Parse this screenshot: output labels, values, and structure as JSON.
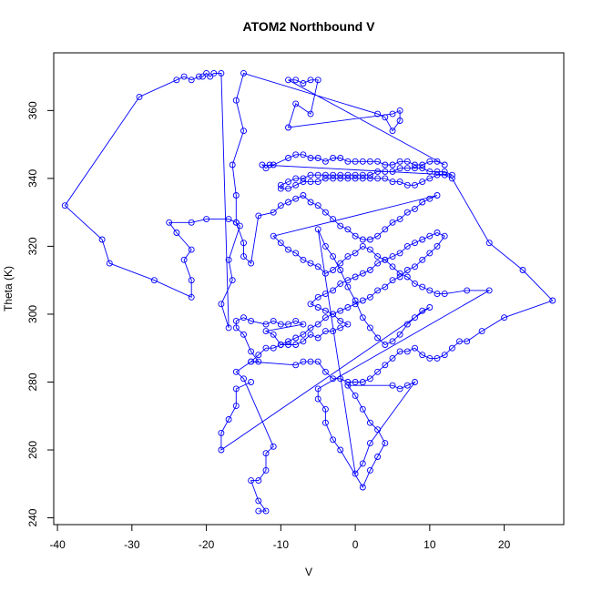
{
  "chart_data": {
    "type": "scatter",
    "title": "ATOM2 Northbound V",
    "xlabel": "V",
    "ylabel": "Theta (K)",
    "xlim": [
      -40.5,
      28
    ],
    "ylim": [
      238,
      377
    ],
    "x_ticks": [
      -40,
      -30,
      -20,
      -10,
      0,
      10,
      20
    ],
    "y_ticks": [
      240,
      260,
      280,
      300,
      320,
      340,
      360
    ],
    "series_color": "#0000ff",
    "marker": "open-circle",
    "connected": true,
    "grid": false,
    "series": [
      {
        "points": [
          [
            -13,
            242
          ],
          [
            -12,
            242
          ],
          [
            -13,
            245
          ],
          [
            -14,
            251
          ],
          [
            -13,
            251
          ],
          [
            -12,
            254
          ],
          [
            -12,
            259
          ],
          [
            -11,
            261
          ],
          [
            -15,
            281
          ],
          [
            -16,
            283
          ],
          [
            -14,
            286
          ],
          [
            -13,
            286
          ],
          [
            -14,
            289
          ],
          [
            -15,
            294
          ],
          [
            -16,
            296
          ],
          [
            -16,
            298
          ],
          [
            -15,
            299
          ],
          [
            -14,
            298
          ],
          [
            -12,
            297
          ],
          [
            -11,
            298
          ],
          [
            -10,
            297
          ],
          [
            -9,
            297
          ],
          [
            -8,
            298
          ],
          [
            -7,
            297
          ],
          [
            -12,
            295
          ],
          [
            -11,
            294
          ],
          [
            -10,
            291
          ],
          [
            -9,
            291
          ],
          [
            -8,
            291
          ],
          [
            -7,
            292
          ],
          [
            -6,
            294
          ],
          [
            -5,
            293
          ],
          [
            -4,
            295
          ],
          [
            -3,
            295
          ],
          [
            -2,
            296
          ],
          [
            -1,
            297
          ],
          [
            -2,
            298
          ],
          [
            -3,
            300
          ],
          [
            -4,
            301
          ],
          [
            -5,
            302
          ],
          [
            -6,
            303
          ],
          [
            -5,
            305
          ],
          [
            -4,
            306
          ],
          [
            -3,
            307
          ],
          [
            -2,
            309
          ],
          [
            -1,
            310
          ],
          [
            0,
            311
          ],
          [
            1,
            312
          ],
          [
            2,
            313
          ],
          [
            3,
            315
          ],
          [
            4,
            316
          ],
          [
            5,
            317
          ],
          [
            6,
            318
          ],
          [
            7,
            320
          ],
          [
            8,
            321
          ],
          [
            9,
            322
          ],
          [
            10,
            323
          ],
          [
            11,
            324
          ],
          [
            12,
            323
          ],
          [
            11,
            320
          ],
          [
            10,
            318
          ],
          [
            9,
            316
          ],
          [
            8,
            314
          ],
          [
            7,
            313
          ],
          [
            6,
            311
          ],
          [
            5,
            310
          ],
          [
            4,
            308
          ],
          [
            3,
            307
          ],
          [
            2,
            305
          ],
          [
            1,
            304
          ],
          [
            0,
            303
          ],
          [
            -1,
            302
          ],
          [
            -2,
            301
          ],
          [
            -3,
            300
          ],
          [
            -4,
            299
          ],
          [
            -5,
            297
          ],
          [
            -6,
            296
          ],
          [
            -7,
            294
          ],
          [
            -8,
            293
          ],
          [
            -9,
            292
          ],
          [
            -10,
            291
          ],
          [
            -11,
            290
          ],
          [
            -12,
            290
          ],
          [
            -13,
            288
          ],
          [
            -14,
            286
          ],
          [
            -8,
            285
          ],
          [
            -7,
            286
          ],
          [
            -6,
            286
          ],
          [
            -5,
            286
          ],
          [
            -4,
            283
          ],
          [
            -3,
            281
          ],
          [
            -2,
            281
          ],
          [
            -1,
            280
          ],
          [
            0,
            280
          ],
          [
            1,
            280
          ],
          [
            2,
            281
          ],
          [
            3,
            283
          ],
          [
            4,
            285
          ],
          [
            5,
            287
          ],
          [
            6,
            289
          ],
          [
            7,
            289
          ],
          [
            8,
            290
          ],
          [
            9,
            288
          ],
          [
            10,
            287
          ],
          [
            11,
            287
          ],
          [
            12,
            288
          ],
          [
            13,
            290
          ],
          [
            14,
            292
          ],
          [
            15,
            292
          ],
          [
            17,
            295
          ],
          [
            20,
            299
          ],
          [
            26.5,
            304
          ],
          [
            22.5,
            313
          ],
          [
            18,
            321
          ],
          [
            13,
            340
          ],
          [
            12,
            341
          ],
          [
            11,
            341
          ],
          [
            10,
            340
          ],
          [
            9,
            339
          ],
          [
            8,
            338
          ],
          [
            7,
            338
          ],
          [
            6,
            339
          ],
          [
            5,
            339
          ],
          [
            4,
            340
          ],
          [
            3,
            340
          ],
          [
            2,
            340
          ],
          [
            1,
            340
          ],
          [
            0,
            340
          ],
          [
            -1,
            340
          ],
          [
            -2,
            340
          ],
          [
            -3,
            340
          ],
          [
            -4,
            340
          ],
          [
            -5,
            339
          ],
          [
            -6,
            339
          ],
          [
            -7,
            339
          ],
          [
            -8,
            338
          ],
          [
            -9,
            337
          ],
          [
            -10,
            337
          ],
          [
            -10,
            338
          ],
          [
            -9,
            339
          ],
          [
            -8,
            340
          ],
          [
            -7,
            340
          ],
          [
            -6,
            341
          ],
          [
            -5,
            341
          ],
          [
            -4,
            341
          ],
          [
            -3,
            341
          ],
          [
            -2,
            341
          ],
          [
            -1,
            341
          ],
          [
            0,
            341
          ],
          [
            1,
            341
          ],
          [
            2,
            341
          ],
          [
            3,
            342
          ],
          [
            4,
            342
          ],
          [
            5,
            342
          ],
          [
            6,
            343
          ],
          [
            7,
            343
          ],
          [
            8,
            343
          ],
          [
            9,
            343
          ],
          [
            10,
            342
          ],
          [
            11,
            342
          ],
          [
            12,
            342
          ],
          [
            13,
            341
          ],
          [
            -12.5,
            344
          ],
          [
            -12,
            343
          ],
          [
            -11.5,
            344
          ],
          [
            -11,
            344
          ],
          [
            -9,
            346
          ],
          [
            -8,
            347
          ],
          [
            -7,
            347
          ],
          [
            -6,
            346
          ],
          [
            -5,
            346
          ],
          [
            -4,
            345
          ],
          [
            -3,
            346
          ],
          [
            -2,
            346
          ],
          [
            -1,
            345
          ],
          [
            0,
            345
          ],
          [
            1,
            345
          ],
          [
            2,
            345
          ],
          [
            3,
            345
          ],
          [
            4,
            344
          ],
          [
            5,
            344
          ],
          [
            6,
            345
          ],
          [
            7,
            345
          ],
          [
            8,
            344
          ],
          [
            9,
            344
          ],
          [
            10,
            345
          ],
          [
            11,
            345
          ],
          [
            12,
            344
          ],
          [
            -9,
            369
          ],
          [
            -8,
            369
          ],
          [
            -7,
            368
          ],
          [
            -6,
            369
          ],
          [
            -5,
            369
          ],
          [
            -6,
            359
          ],
          [
            -8,
            362
          ],
          [
            -9,
            355
          ],
          [
            5,
            359
          ],
          [
            6,
            360
          ],
          [
            6,
            357
          ],
          [
            5,
            354
          ],
          [
            4,
            358
          ],
          [
            3,
            359
          ],
          [
            -15,
            371
          ],
          [
            -16,
            363
          ],
          [
            -15,
            354
          ],
          [
            -16.5,
            344
          ],
          [
            -16,
            335
          ],
          [
            -16,
            327
          ],
          [
            -15.5,
            326
          ],
          [
            -17,
            316
          ],
          [
            -16.5,
            310
          ],
          [
            -18,
            303
          ],
          [
            -17,
            296
          ],
          [
            -18,
            371
          ],
          [
            -19,
            371
          ],
          [
            -19.5,
            370
          ],
          [
            -20,
            371
          ],
          [
            -20.5,
            370
          ],
          [
            -21,
            370
          ],
          [
            -22,
            369
          ],
          [
            -23,
            370
          ],
          [
            -24,
            369
          ],
          [
            -29,
            364
          ],
          [
            -39,
            332
          ],
          [
            -34,
            322
          ],
          [
            -33,
            315
          ],
          [
            -27,
            310
          ],
          [
            -22,
            305
          ],
          [
            -22,
            310
          ],
          [
            -23,
            316
          ],
          [
            -22,
            319
          ],
          [
            -24,
            324
          ],
          [
            -25,
            327
          ],
          [
            -22,
            327
          ],
          [
            -20,
            328
          ],
          [
            -17,
            328
          ],
          [
            -16,
            327
          ],
          [
            -15,
            321
          ],
          [
            -15,
            317
          ],
          [
            -14,
            315
          ],
          [
            -13,
            329
          ],
          [
            -11,
            330
          ],
          [
            -10,
            332
          ],
          [
            -9,
            333
          ],
          [
            -8,
            334
          ],
          [
            -7,
            335
          ],
          [
            -6,
            333
          ],
          [
            -5,
            332
          ],
          [
            -4,
            330
          ],
          [
            -3,
            328
          ],
          [
            -2,
            326
          ],
          [
            -1,
            325
          ],
          [
            0,
            323
          ],
          [
            1,
            322
          ],
          [
            2,
            322
          ],
          [
            3,
            323
          ],
          [
            4,
            325
          ],
          [
            5,
            327
          ],
          [
            6,
            328
          ],
          [
            7,
            330
          ],
          [
            8,
            331
          ],
          [
            9,
            333
          ],
          [
            10,
            334
          ],
          [
            11,
            335
          ],
          [
            -11,
            323
          ],
          [
            -10,
            321
          ],
          [
            -9,
            319
          ],
          [
            -8,
            318
          ],
          [
            -7,
            316
          ],
          [
            -6,
            315
          ],
          [
            -5,
            314
          ],
          [
            -4,
            312
          ],
          [
            -3,
            313
          ],
          [
            -2,
            315
          ],
          [
            -1,
            317
          ],
          [
            0,
            318
          ],
          [
            1,
            320
          ],
          [
            2,
            319
          ],
          [
            3,
            317
          ],
          [
            4,
            316
          ],
          [
            5,
            314
          ],
          [
            6,
            312
          ],
          [
            7,
            311
          ],
          [
            8,
            309
          ],
          [
            9,
            308
          ],
          [
            10,
            307
          ],
          [
            11,
            306
          ],
          [
            12,
            306
          ],
          [
            15,
            307
          ],
          [
            18,
            307
          ],
          [
            -5,
            278
          ],
          [
            -5,
            275
          ],
          [
            -4,
            272
          ],
          [
            -4,
            268
          ],
          [
            -3,
            263
          ],
          [
            -2,
            260
          ],
          [
            1,
            249
          ],
          [
            2,
            254
          ],
          [
            3,
            258
          ],
          [
            4,
            262
          ],
          [
            3,
            266
          ],
          [
            2,
            268
          ],
          [
            1,
            272
          ],
          [
            0,
            276
          ],
          [
            -1,
            279
          ],
          [
            5,
            279
          ],
          [
            6,
            278
          ],
          [
            7,
            279
          ],
          [
            8,
            280
          ],
          [
            2,
            262
          ],
          [
            1,
            256
          ],
          [
            0,
            253
          ],
          [
            -5,
            325
          ],
          [
            -4,
            320
          ],
          [
            -3,
            317
          ],
          [
            -2,
            313
          ],
          [
            -1,
            308
          ],
          [
            0,
            304
          ],
          [
            1,
            299
          ],
          [
            2,
            296
          ],
          [
            3,
            293
          ],
          [
            4,
            291
          ],
          [
            5,
            292
          ],
          [
            6,
            294
          ],
          [
            7,
            297
          ],
          [
            8,
            299
          ],
          [
            9,
            301
          ],
          [
            10,
            302
          ],
          [
            -18,
            260
          ],
          [
            -18,
            265
          ],
          [
            -17,
            269
          ],
          [
            -16,
            273
          ],
          [
            -16,
            278
          ],
          [
            -14,
            280
          ]
        ]
      }
    ]
  }
}
